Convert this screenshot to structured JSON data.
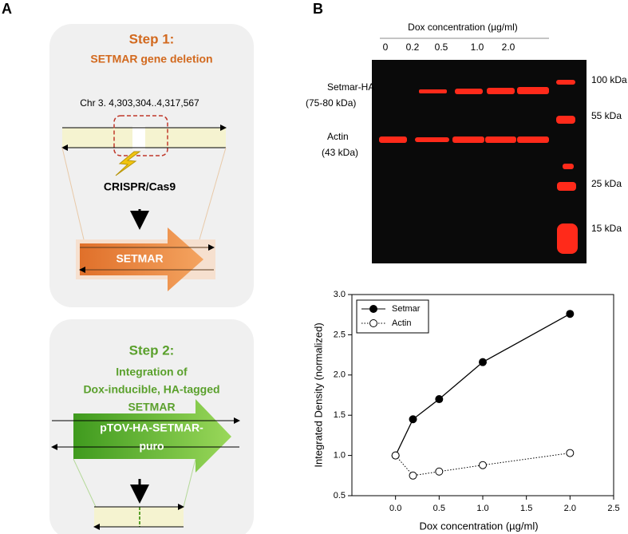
{
  "panel_a": {
    "label": "A",
    "step1": {
      "title": "Step 1:",
      "subtitle": "SETMAR gene deletion",
      "locus": "Chr 3.  4,303,304..4,317,567",
      "tool": "CRISPR/Cas9",
      "gene": "SETMAR"
    },
    "step2": {
      "title": "Step 2:",
      "lines": [
        "Integration of",
        "Dox-inducible, HA-tagged",
        "SETMAR"
      ],
      "construct": [
        "pTOV-HA-SETMAR-",
        "puro"
      ]
    }
  },
  "panel_b": {
    "label": "B",
    "blot": {
      "header": "Dox concentration (µg/ml)",
      "lanes": [
        "0",
        "0.2",
        "0.5",
        "1.0",
        "2.0"
      ],
      "bands": [
        "Setmar-HA",
        "(75-80 kDa)",
        "Actin",
        "(43 kDa)"
      ],
      "markers": [
        "100 kDa",
        "55 kDa",
        "25 kDa",
        "15 kDa"
      ]
    }
  },
  "chart_data": {
    "type": "line",
    "x_label": "Dox concentration (µg/ml)",
    "y_label": "Integrated Density (normalized)",
    "x": [
      0,
      0.2,
      0.5,
      1.0,
      2.0
    ],
    "series": [
      {
        "name": "Setmar",
        "color": "#000000",
        "marker": "filled",
        "linestyle": "solid",
        "values": [
          1.0,
          1.45,
          1.7,
          2.16,
          2.76
        ]
      },
      {
        "name": "Actin",
        "color": "#000000",
        "marker": "open",
        "linestyle": "dotted",
        "values": [
          1.0,
          0.75,
          0.8,
          0.88,
          1.03
        ]
      }
    ],
    "xlim": [
      -0.5,
      2.5
    ],
    "xticks": [
      {
        "value": 0,
        "label": "0.0"
      },
      0.5,
      {
        "value": 1,
        "label": "1.0"
      },
      1.5,
      {
        "value": 2,
        "label": "2.0"
      },
      2.5
    ],
    "ylim": [
      0.5,
      3.0
    ],
    "yticks": [
      0.5,
      {
        "value": 1,
        "label": "1.0"
      },
      1.5,
      {
        "value": 2,
        "label": "2.0"
      },
      2.5,
      {
        "value": 3,
        "label": "3.0"
      }
    ],
    "legend": "upper-left",
    "grid": false
  }
}
